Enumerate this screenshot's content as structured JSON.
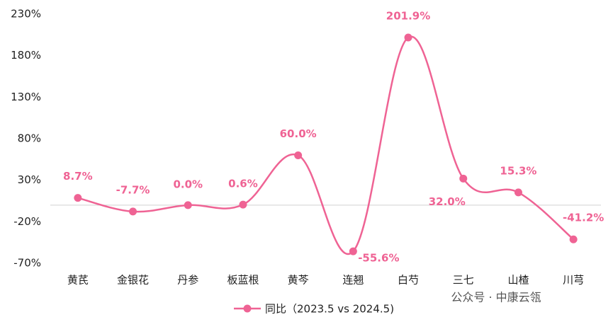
{
  "chart_data": {
    "type": "line",
    "categories": [
      "黄芪",
      "金银花",
      "丹参",
      "板蓝根",
      "黄芩",
      "连翘",
      "白芍",
      "三七",
      "山楂",
      "川芎"
    ],
    "series": [
      {
        "name": "同比（2023.5 vs 2024.5)",
        "color": "#ef6394",
        "values": [
          8.7,
          -7.7,
          0.0,
          0.6,
          60.0,
          -55.6,
          201.9,
          32.0,
          15.3,
          -41.2
        ],
        "value_labels": [
          "8.7%",
          "-7.7%",
          "0.0%",
          "0.6%",
          "60.0%",
          "-55.6%",
          "201.9%",
          "32.0%",
          "15.3%",
          "-41.2%"
        ]
      }
    ],
    "ylim": [
      -70,
      230
    ],
    "yticks": [
      {
        "value": -70,
        "label": "-70%"
      },
      {
        "value": -20,
        "label": "-20%"
      },
      {
        "value": 30,
        "label": "30%"
      },
      {
        "value": 80,
        "label": "80%"
      },
      {
        "value": 130,
        "label": "130%"
      },
      {
        "value": 180,
        "label": "180%"
      },
      {
        "value": 230,
        "label": "230%"
      }
    ],
    "annotation": "公众号 · 中康云瓴"
  }
}
